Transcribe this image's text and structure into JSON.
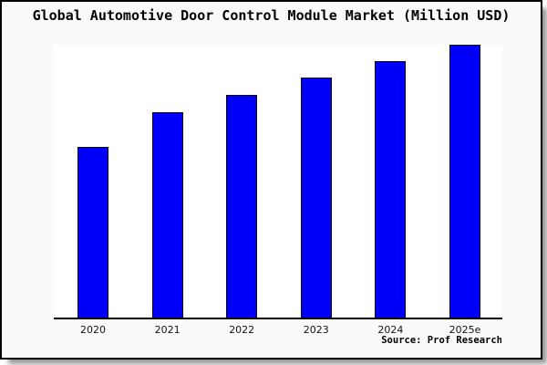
{
  "title": "Global Automotive Door Control Module Market (Million USD)",
  "source_credit": "Source: Prof Research",
  "colors": {
    "bar_fill": "#0000fa",
    "bar_border": "#000000",
    "panel_background": "#fafafa",
    "plot_background": "#ffffff",
    "axis_line": "#000000",
    "text": "#000000"
  },
  "chart_data": {
    "type": "bar",
    "title": "Global Automotive Door Control Module Market (Million USD)",
    "categories": [
      "2020",
      "2021",
      "2022",
      "2023",
      "2024",
      "2025e"
    ],
    "values": [
      62.7,
      75.3,
      81.6,
      88.0,
      94.0,
      100.0
    ],
    "value_units": "relative (% of tallest bar); no numeric y-axis or data labels are shown in the chart",
    "xlabel": "",
    "ylabel": "",
    "ylim": [
      0,
      100
    ],
    "grid": false,
    "legend": false,
    "yaxis_ticks_shown": false,
    "annotation": "Source: Prof Research"
  }
}
